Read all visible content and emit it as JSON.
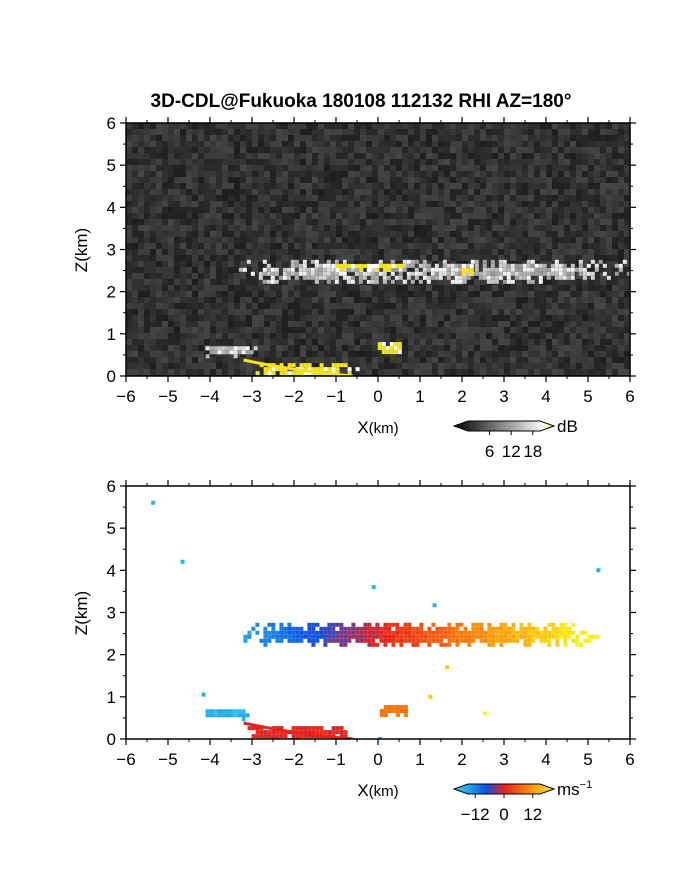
{
  "title": "3D-CDL@Fukuoka 180108 112132 RHI AZ=180°",
  "chart_data": [
    {
      "type": "heatmap",
      "panel": "backscatter",
      "xlabel_main": "X",
      "xlabel_unit": "(km)",
      "ylabel": "Z(km)",
      "xlim": [
        -6,
        6
      ],
      "ylim": [
        0,
        6
      ],
      "xticks": [
        "-6",
        "-5",
        "-4",
        "-3",
        "-2",
        "-1",
        "0",
        "1",
        "2",
        "3",
        "4",
        "5",
        "6"
      ],
      "yticks": [
        "0",
        "1",
        "2",
        "3",
        "4",
        "5",
        "6"
      ],
      "background": "noise (dark gray)",
      "features": [
        {
          "name": "cloud layer",
          "x_range": [
            -3.6,
            6.0
          ],
          "z_range": [
            2.2,
            2.85
          ],
          "intensity_dB": 14
        },
        {
          "name": "strong echo (yellow)",
          "x_range": [
            -1.3,
            0.6
          ],
          "z_range": [
            2.55,
            2.75
          ],
          "intensity_dB": 19
        },
        {
          "name": "strong echo (yellow)",
          "x_range": [
            1.9,
            2.3
          ],
          "z_range": [
            2.4,
            2.75
          ],
          "intensity_dB": 19
        },
        {
          "name": "low echo",
          "x_range": [
            -4.2,
            -2.8
          ],
          "z_range": [
            0.5,
            0.8
          ],
          "intensity_dB": 12
        },
        {
          "name": "ground clutter",
          "x_range": [
            -3.2,
            -0.5
          ],
          "z_range": [
            0.0,
            0.4
          ],
          "intensity_dB": 19
        },
        {
          "name": "near-site echo",
          "x_range": [
            -0.1,
            0.6
          ],
          "z_range": [
            0.5,
            0.9
          ],
          "intensity_dB": 19
        }
      ],
      "colorbar": {
        "unit": "dB",
        "ticks": [
          "6",
          "12",
          "18"
        ],
        "range": [
          0,
          20
        ]
      }
    },
    {
      "type": "heatmap",
      "panel": "doppler velocity",
      "xlabel_main": "X",
      "xlabel_unit": "(km)",
      "ylabel": "Z(km)",
      "xlim": [
        -6,
        6
      ],
      "ylim": [
        0,
        6
      ],
      "xticks": [
        "-6",
        "-5",
        "-4",
        "-3",
        "-2",
        "-1",
        "0",
        "1",
        "2",
        "3",
        "4",
        "5",
        "6"
      ],
      "yticks": [
        "0",
        "1",
        "2",
        "3",
        "4",
        "5",
        "6"
      ],
      "features": [
        {
          "name": "cloud layer",
          "x_range": [
            -3.3,
            5.3
          ],
          "z_range": [
            2.2,
            2.85
          ],
          "velocity_ms": [
            -12,
            12
          ]
        },
        {
          "name": "low echo",
          "x_range": [
            -4.2,
            -3.1
          ],
          "z_range": [
            0.5,
            0.8
          ],
          "velocity_ms": -12
        },
        {
          "name": "ground clutter",
          "x_range": [
            -3.2,
            -0.5
          ],
          "z_range": [
            0.0,
            0.4
          ],
          "velocity_ms": 0
        },
        {
          "name": "near-site echo",
          "x_range": [
            -0.05,
            0.75
          ],
          "z_range": [
            0.55,
            0.9
          ],
          "velocity_ms": 6
        }
      ],
      "colorbar": {
        "unit_main": "ms",
        "unit_sup": "−1",
        "ticks": [
          "−12",
          "0",
          "12"
        ],
        "range": [
          -15,
          15
        ]
      }
    }
  ],
  "colors": {
    "noise_background": "#2e2e2e",
    "strong_echo": "#f2e41a",
    "velocity_negative": "#1e6fe0",
    "velocity_zero": "#e8221c",
    "velocity_positive": "#f8e020"
  }
}
